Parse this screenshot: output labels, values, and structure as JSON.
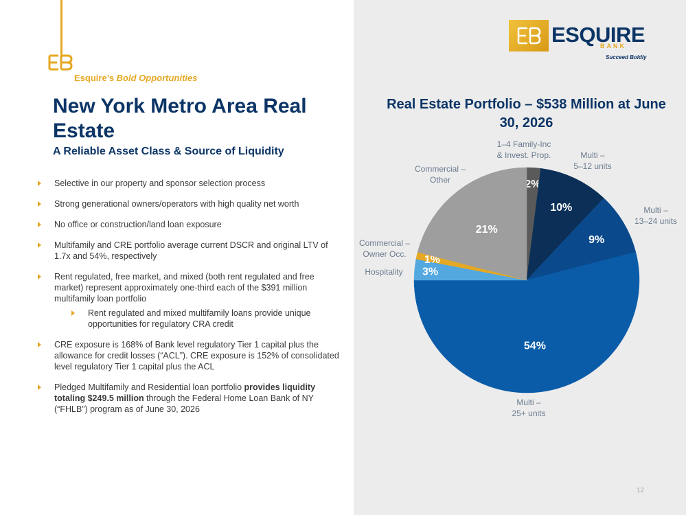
{
  "header": {
    "tag_prefix": "Esquire’s",
    "tag_emphasis": "Bold Opportunities",
    "title": "New York Metro Area Real Estate",
    "subtitle": "A Reliable Asset Class & Source of Liquidity"
  },
  "bullets": [
    {
      "text": "Selective in our property and sponsor selection process"
    },
    {
      "text": "Strong generational owners/operators with high quality net worth"
    },
    {
      "text": "No office or construction/land loan exposure"
    },
    {
      "text": "Multifamily and CRE portfolio average current DSCR and original LTV of 1.7x and 54%, respectively"
    },
    {
      "text": "Rent regulated, free market, and mixed (both rent regulated and free market) represent approximately one-third each of the $391 million multifamily loan portfolio"
    },
    {
      "text": "Rent regulated and mixed multifamily loans provide unique opportunities for regulatory CRA credit",
      "sub": true
    },
    {
      "text": "CRE exposure is 168% of Bank level regulatory Tier 1 capital plus the allowance for credit losses (“ACL”). CRE exposure is 152% of consolidated level regulatory Tier 1 capital plus the ACL"
    },
    {
      "text_before": "Pledged Multifamily and Residential loan portfolio ",
      "bold": "provides liquidity totaling $249.5 million",
      "text_after": " through the Federal Home Loan Bank of NY (“FHLB”) program as of June 30, 2026"
    }
  ],
  "logo": {
    "word": "ESQUIRE",
    "bank": "BANK",
    "tagline": "Succeed Boldly",
    "mark_icon": "eb-monogram-icon"
  },
  "colors": {
    "navy": "#0c3566",
    "gold": "#e5a823",
    "panel_bg": "#ececec"
  },
  "chart_data": {
    "type": "pie",
    "title": "Real Estate Portfolio – $538 Million at June 30, 2026",
    "slices": [
      {
        "label": "1–4 Family-Inc & Invest. Prop.",
        "value": 2,
        "display": "2%",
        "color": "#5a5a5a"
      },
      {
        "label": "Multi – 5–12 units",
        "value": 10,
        "display": "10%",
        "color": "#0b2f57"
      },
      {
        "label": "Multi – 13–24 units",
        "value": 9,
        "display": "9%",
        "color": "#0a4a8c"
      },
      {
        "label": "Multi – 25+ units",
        "value": 54,
        "display": "54%",
        "color": "#0a5ca8"
      },
      {
        "label": "Hospitality",
        "value": 3,
        "display": "3%",
        "color": "#54a8e0"
      },
      {
        "label": "Commercial – Owner Occ.",
        "value": 1,
        "display": "1%",
        "color": "#e5a823"
      },
      {
        "label": "Commercial – Other",
        "value": 21,
        "display": "21%",
        "color": "#9e9e9e"
      }
    ]
  },
  "page_number": "12"
}
